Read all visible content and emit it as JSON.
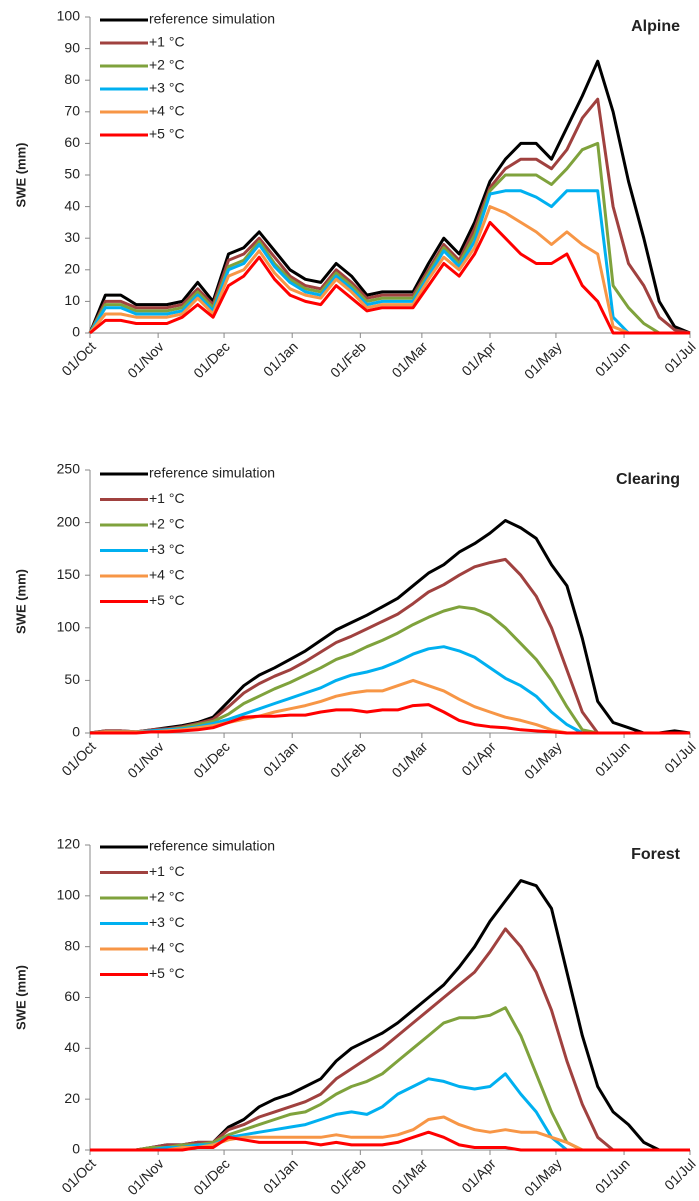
{
  "chart_data": [
    {
      "type": "line",
      "title": "Alpine",
      "ylabel": "SWE (mm)",
      "x": [
        0,
        7,
        14,
        21,
        28,
        35,
        42,
        49,
        56,
        63,
        70,
        77,
        84,
        91,
        98,
        105,
        112,
        119,
        126,
        133,
        140,
        147,
        154,
        161,
        168,
        175,
        182,
        189,
        196,
        203,
        210,
        217,
        224,
        231,
        238,
        245,
        252,
        259,
        266,
        273
      ],
      "xlim": [
        0,
        273
      ],
      "xticks": [
        {
          "value": 0,
          "label": "01/Oct"
        },
        {
          "value": 31,
          "label": "01/Nov"
        },
        {
          "value": 61,
          "label": "01/Dec"
        },
        {
          "value": 92,
          "label": "01/Jan"
        },
        {
          "value": 123,
          "label": "01/Feb"
        },
        {
          "value": 151,
          "label": "01/Mar"
        },
        {
          "value": 182,
          "label": "01/Apr"
        },
        {
          "value": 212,
          "label": "01/May"
        },
        {
          "value": 243,
          "label": "01/Jun"
        },
        {
          "value": 273,
          "label": "01/Jul"
        }
      ],
      "ylim": [
        0,
        100
      ],
      "yticks": [
        0,
        10,
        20,
        30,
        40,
        50,
        60,
        70,
        80,
        90,
        100
      ],
      "series": [
        {
          "name": "reference simulation",
          "color": "#000000",
          "values": [
            0,
            12,
            12,
            9,
            9,
            9,
            10,
            16,
            10,
            25,
            27,
            32,
            26,
            20,
            17,
            16,
            22,
            18,
            12,
            13,
            13,
            13,
            22,
            30,
            25,
            35,
            48,
            55,
            60,
            60,
            55,
            65,
            75,
            86,
            70,
            48,
            30,
            10,
            2,
            0
          ]
        },
        {
          "name": "+1 °C",
          "color": "#a0413f",
          "values": [
            0,
            10,
            10,
            8,
            8,
            8,
            9,
            14,
            9,
            23,
            25,
            30,
            24,
            18,
            15,
            14,
            20,
            16,
            11,
            12,
            12,
            12,
            20,
            28,
            23,
            33,
            46,
            52,
            55,
            55,
            52,
            58,
            68,
            74,
            40,
            22,
            15,
            5,
            1,
            0
          ]
        },
        {
          "name": "+2 °C",
          "color": "#7fa23c",
          "values": [
            0,
            9,
            9,
            7,
            7,
            7,
            8,
            13,
            8,
            21,
            23,
            29,
            22,
            17,
            14,
            13,
            19,
            15,
            10,
            11,
            11,
            11,
            19,
            27,
            22,
            31,
            45,
            50,
            50,
            50,
            47,
            52,
            58,
            60,
            15,
            8,
            3,
            0,
            0,
            0
          ]
        },
        {
          "name": "+3 °C",
          "color": "#00b0f0",
          "values": [
            0,
            8,
            8,
            6,
            6,
            6,
            7,
            12,
            7,
            20,
            22,
            28,
            21,
            16,
            13,
            12,
            18,
            14,
            9,
            10,
            10,
            10,
            18,
            26,
            21,
            29,
            44,
            45,
            45,
            43,
            40,
            45,
            45,
            45,
            5,
            0,
            0,
            0,
            0,
            0
          ]
        },
        {
          "name": "+4 °C",
          "color": "#f79646",
          "values": [
            0,
            6,
            6,
            5,
            5,
            5,
            6,
            11,
            6,
            18,
            20,
            26,
            19,
            14,
            12,
            11,
            17,
            13,
            8,
            9,
            9,
            9,
            17,
            24,
            20,
            27,
            40,
            38,
            35,
            32,
            28,
            32,
            28,
            25,
            2,
            0,
            0,
            0,
            0,
            0
          ]
        },
        {
          "name": "+5 °C",
          "color": "#ff0000",
          "values": [
            0,
            4,
            4,
            3,
            3,
            3,
            5,
            9,
            5,
            15,
            18,
            24,
            17,
            12,
            10,
            9,
            15,
            11,
            7,
            8,
            8,
            8,
            15,
            22,
            18,
            25,
            35,
            30,
            25,
            22,
            22,
            25,
            15,
            10,
            0,
            0,
            0,
            0,
            0,
            0
          ]
        }
      ]
    },
    {
      "type": "line",
      "title": "Clearing",
      "ylabel": "SWE (mm)",
      "x": [
        0,
        7,
        14,
        21,
        28,
        35,
        42,
        49,
        56,
        63,
        70,
        77,
        84,
        91,
        98,
        105,
        112,
        119,
        126,
        133,
        140,
        147,
        154,
        161,
        168,
        175,
        182,
        189,
        196,
        203,
        210,
        217,
        224,
        231,
        238,
        245,
        252,
        259,
        266,
        273
      ],
      "xlim": [
        0,
        273
      ],
      "xticks": [
        {
          "value": 0,
          "label": "01/Oct"
        },
        {
          "value": 31,
          "label": "01/Nov"
        },
        {
          "value": 61,
          "label": "01/Dec"
        },
        {
          "value": 92,
          "label": "01/Jan"
        },
        {
          "value": 123,
          "label": "01/Feb"
        },
        {
          "value": 151,
          "label": "01/Mar"
        },
        {
          "value": 182,
          "label": "01/Apr"
        },
        {
          "value": 212,
          "label": "01/May"
        },
        {
          "value": 243,
          "label": "01/Jun"
        },
        {
          "value": 273,
          "label": "01/Jul"
        }
      ],
      "ylim": [
        0,
        250
      ],
      "yticks": [
        0,
        50,
        100,
        150,
        200,
        250
      ],
      "series": [
        {
          "name": "reference simulation",
          "color": "#000000",
          "values": [
            0,
            2,
            2,
            1,
            3,
            5,
            7,
            10,
            15,
            30,
            45,
            55,
            62,
            70,
            78,
            88,
            98,
            105,
            112,
            120,
            128,
            140,
            152,
            160,
            172,
            180,
            190,
            202,
            195,
            185,
            160,
            140,
            90,
            30,
            10,
            5,
            0,
            0,
            2,
            0
          ]
        },
        {
          "name": "+1 °C",
          "color": "#a0413f",
          "values": [
            0,
            2,
            2,
            1,
            3,
            4,
            6,
            9,
            13,
            25,
            38,
            47,
            54,
            60,
            68,
            77,
            86,
            92,
            99,
            106,
            113,
            123,
            134,
            141,
            150,
            158,
            162,
            165,
            150,
            130,
            100,
            60,
            20,
            0,
            0,
            0,
            0,
            0,
            0,
            0
          ]
        },
        {
          "name": "+2 °C",
          "color": "#7fa23c",
          "values": [
            0,
            1,
            1,
            1,
            2,
            3,
            5,
            8,
            11,
            18,
            28,
            35,
            42,
            48,
            55,
            62,
            70,
            75,
            82,
            88,
            95,
            103,
            110,
            116,
            120,
            118,
            112,
            100,
            85,
            70,
            50,
            25,
            3,
            0,
            0,
            0,
            0,
            0,
            0,
            0
          ]
        },
        {
          "name": "+3 °C",
          "color": "#00b0f0",
          "values": [
            0,
            1,
            1,
            1,
            2,
            3,
            4,
            6,
            9,
            13,
            18,
            23,
            28,
            33,
            38,
            43,
            50,
            55,
            58,
            62,
            68,
            75,
            80,
            82,
            78,
            72,
            62,
            52,
            45,
            35,
            20,
            8,
            0,
            0,
            0,
            0,
            0,
            0,
            0,
            0
          ]
        },
        {
          "name": "+4 °C",
          "color": "#f79646",
          "values": [
            0,
            1,
            1,
            1,
            1,
            2,
            3,
            5,
            7,
            10,
            13,
            16,
            20,
            23,
            26,
            30,
            35,
            38,
            40,
            40,
            45,
            50,
            45,
            40,
            32,
            25,
            20,
            15,
            12,
            8,
            3,
            0,
            0,
            0,
            0,
            0,
            0,
            0,
            0,
            0
          ]
        },
        {
          "name": "+5 °C",
          "color": "#ff0000",
          "values": [
            0,
            0,
            0,
            0,
            1,
            1,
            2,
            3,
            5,
            10,
            15,
            16,
            16,
            17,
            17,
            20,
            22,
            22,
            20,
            22,
            22,
            26,
            27,
            20,
            12,
            8,
            6,
            5,
            3,
            2,
            1,
            0,
            0,
            0,
            0,
            0,
            0,
            0,
            0,
            0
          ]
        }
      ]
    },
    {
      "type": "line",
      "title": "Forest",
      "ylabel": "SWE (mm)",
      "x": [
        0,
        7,
        14,
        21,
        28,
        35,
        42,
        49,
        56,
        63,
        70,
        77,
        84,
        91,
        98,
        105,
        112,
        119,
        126,
        133,
        140,
        147,
        154,
        161,
        168,
        175,
        182,
        189,
        196,
        203,
        210,
        217,
        224,
        231,
        238,
        245,
        252,
        259,
        266,
        273
      ],
      "xlim": [
        0,
        273
      ],
      "xticks": [
        {
          "value": 0,
          "label": "01/Oct"
        },
        {
          "value": 31,
          "label": "01/Nov"
        },
        {
          "value": 61,
          "label": "01/Dec"
        },
        {
          "value": 92,
          "label": "01/Jan"
        },
        {
          "value": 123,
          "label": "01/Feb"
        },
        {
          "value": 151,
          "label": "01/Mar"
        },
        {
          "value": 182,
          "label": "01/Apr"
        },
        {
          "value": 212,
          "label": "01/May"
        },
        {
          "value": 243,
          "label": "01/Jun"
        },
        {
          "value": 273,
          "label": "01/Jul"
        }
      ],
      "ylim": [
        0,
        120
      ],
      "yticks": [
        0,
        20,
        40,
        60,
        80,
        100,
        120
      ],
      "series": [
        {
          "name": "reference simulation",
          "color": "#000000",
          "values": [
            0,
            0,
            0,
            0,
            1,
            2,
            2,
            3,
            3,
            9,
            12,
            17,
            20,
            22,
            25,
            28,
            35,
            40,
            43,
            46,
            50,
            55,
            60,
            65,
            72,
            80,
            90,
            98,
            106,
            104,
            95,
            70,
            45,
            25,
            15,
            10,
            3,
            0,
            0,
            0
          ]
        },
        {
          "name": "+1 °C",
          "color": "#a0413f",
          "values": [
            0,
            0,
            0,
            0,
            1,
            2,
            2,
            3,
            3,
            8,
            10,
            13,
            15,
            17,
            19,
            22,
            28,
            32,
            36,
            40,
            45,
            50,
            55,
            60,
            65,
            70,
            78,
            87,
            80,
            70,
            55,
            35,
            18,
            5,
            0,
            0,
            0,
            0,
            0,
            0
          ]
        },
        {
          "name": "+2 °C",
          "color": "#7fa23c",
          "values": [
            0,
            0,
            0,
            0,
            1,
            1,
            2,
            2,
            3,
            6,
            8,
            10,
            12,
            14,
            15,
            18,
            22,
            25,
            27,
            30,
            35,
            40,
            45,
            50,
            52,
            52,
            53,
            56,
            45,
            30,
            15,
            3,
            0,
            0,
            0,
            0,
            0,
            0,
            0,
            0
          ]
        },
        {
          "name": "+3 °C",
          "color": "#00b0f0",
          "values": [
            0,
            0,
            0,
            0,
            0,
            1,
            1,
            2,
            2,
            5,
            6,
            7,
            8,
            9,
            10,
            12,
            14,
            15,
            14,
            17,
            22,
            25,
            28,
            27,
            25,
            24,
            25,
            30,
            22,
            15,
            5,
            0,
            0,
            0,
            0,
            0,
            0,
            0,
            0,
            0
          ]
        },
        {
          "name": "+4 °C",
          "color": "#f79646",
          "values": [
            0,
            0,
            0,
            0,
            0,
            0,
            1,
            1,
            2,
            4,
            5,
            5,
            5,
            5,
            5,
            5,
            6,
            5,
            5,
            5,
            6,
            8,
            12,
            13,
            10,
            8,
            7,
            8,
            7,
            7,
            5,
            3,
            0,
            0,
            0,
            0,
            0,
            0,
            0,
            0
          ]
        },
        {
          "name": "+5 °C",
          "color": "#ff0000",
          "values": [
            0,
            0,
            0,
            0,
            0,
            0,
            0,
            1,
            1,
            5,
            4,
            3,
            3,
            3,
            3,
            2,
            3,
            2,
            2,
            2,
            3,
            5,
            7,
            5,
            2,
            1,
            1,
            1,
            0,
            0,
            0,
            0,
            0,
            0,
            0,
            0,
            0,
            0,
            0,
            0
          ]
        }
      ]
    }
  ]
}
